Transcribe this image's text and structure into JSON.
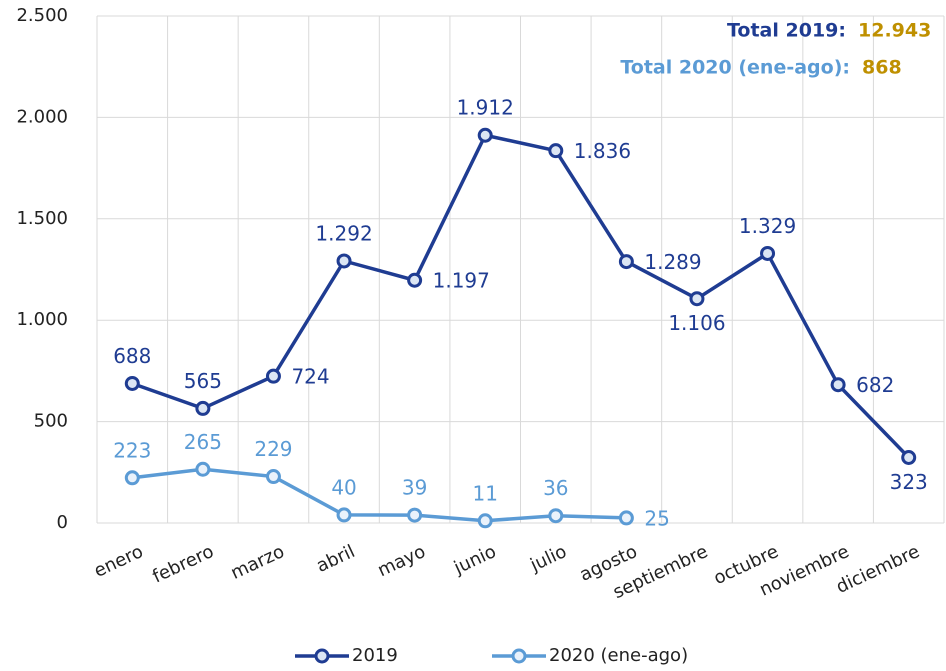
{
  "chart_data": {
    "type": "line",
    "categories": [
      "enero",
      "febrero",
      "marzo",
      "abril",
      "mayo",
      "junio",
      "julio",
      "agosto",
      "septiembre",
      "octubre",
      "noviembre",
      "diciembre"
    ],
    "series": [
      {
        "name": "2019",
        "color": "#1f3c92",
        "values": [
          688,
          565,
          724,
          1292,
          1197,
          1912,
          1836,
          1289,
          1106,
          1329,
          682,
          323
        ],
        "value_labels": [
          "688",
          "565",
          "724",
          "1.292",
          "1.197",
          "1.912",
          "1.836",
          "1.289",
          "1.106",
          "1.329",
          "682",
          "323"
        ]
      },
      {
        "name": "2020 (ene-ago)",
        "color": "#5b9bd5",
        "values": [
          223,
          265,
          229,
          40,
          39,
          11,
          36,
          25,
          null,
          null,
          null,
          null
        ]
      }
    ],
    "ylim": [
      0,
      2500
    ],
    "yticks": [
      0,
      500,
      {
        "value": 1000,
        "label": "1.000"
      },
      {
        "value": 1500,
        "label": "1.500"
      },
      {
        "value": 2000,
        "label": "2.000"
      },
      {
        "value": 2500,
        "label": "2.500"
      }
    ],
    "grid": true,
    "legend": "bottom",
    "annotations": [
      {
        "text": "Total 2019:",
        "value": "12.943",
        "color": "#1f3c92",
        "value_color": "#bf9000"
      },
      {
        "text": "Total 2020 (ene-ago):",
        "value": "868",
        "color": "#5b9bd5",
        "value_color": "#bf9000"
      }
    ]
  }
}
